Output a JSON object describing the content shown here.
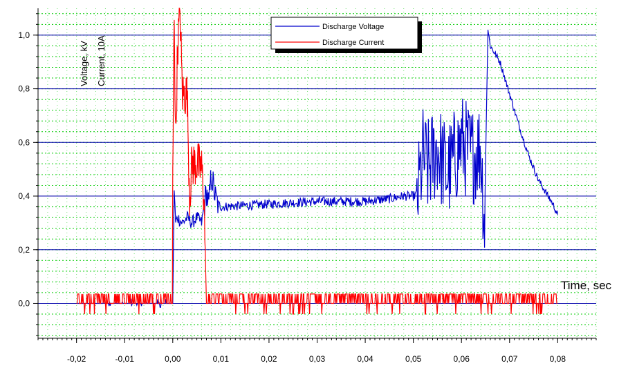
{
  "chart_data": {
    "type": "line",
    "title": "",
    "xlabel": "Time, sec",
    "ylabel_lines": [
      "Voltage, kV",
      "Current, 10A"
    ],
    "xlim": [
      -0.028,
      0.088
    ],
    "ylim": [
      -0.13,
      1.1
    ],
    "x_ticks": [
      -0.02,
      -0.01,
      0.0,
      0.01,
      0.02,
      0.03,
      0.04,
      0.05,
      0.06,
      0.07,
      0.08
    ],
    "x_tick_labels": [
      "-0,02",
      "-0,01",
      "0,00",
      "0,01",
      "0,02",
      "0,03",
      "0,04",
      "0,05",
      "0,06",
      "0,07",
      "0,08"
    ],
    "y_ticks": [
      0.0,
      0.2,
      0.4,
      0.6,
      0.8,
      1.0
    ],
    "y_tick_labels": [
      "0,0",
      "0,2",
      "0,4",
      "0,6",
      "0,8",
      "1,0"
    ],
    "grid": {
      "major_color": "#0000aa",
      "minor_color": "#00cc00",
      "minor_style": "dotted"
    },
    "legend": {
      "position": "top-right",
      "entries": [
        "Discharge Voltage",
        "Discharge Current"
      ]
    },
    "series": [
      {
        "name": "Discharge Voltage",
        "color": "#0000cc",
        "x": [
          -0.02,
          -0.01,
          0.0,
          0.0003,
          0.0006,
          0.001,
          0.002,
          0.003,
          0.004,
          0.005,
          0.006,
          0.0065,
          0.007,
          0.0075,
          0.008,
          0.009,
          0.01,
          0.02,
          0.03,
          0.04,
          0.045,
          0.048,
          0.05,
          0.051,
          0.052,
          0.053,
          0.055,
          0.057,
          0.06,
          0.062,
          0.064,
          0.0648,
          0.0655,
          0.066,
          0.068,
          0.07,
          0.072,
          0.074,
          0.076,
          0.078,
          0.079,
          0.08
        ],
        "y": [
          0.0,
          0.0,
          0.0,
          0.42,
          0.3,
          0.32,
          0.3,
          0.32,
          0.3,
          0.32,
          0.3,
          0.36,
          0.42,
          0.36,
          0.48,
          0.38,
          0.36,
          0.37,
          0.38,
          0.38,
          0.39,
          0.4,
          0.4,
          0.41,
          0.55,
          0.5,
          0.58,
          0.48,
          0.6,
          0.55,
          0.58,
          0.3,
          1.02,
          0.96,
          0.9,
          0.78,
          0.66,
          0.55,
          0.46,
          0.4,
          0.37,
          0.33
        ]
      },
      {
        "name": "Discharge Current",
        "color": "#ff0000",
        "x": [
          -0.02,
          -0.01,
          -0.0005,
          0.0,
          0.0003,
          0.0006,
          0.001,
          0.0015,
          0.002,
          0.003,
          0.0035,
          0.004,
          0.005,
          0.006,
          0.0065,
          0.007,
          0.0075,
          0.02,
          0.04,
          0.06,
          0.08
        ],
        "y": [
          0.0,
          0.0,
          0.0,
          0.45,
          1.1,
          0.6,
          0.95,
          1.1,
          0.78,
          0.78,
          0.4,
          0.52,
          0.52,
          0.5,
          0.4,
          0.0,
          0.0,
          0.0,
          0.0,
          0.0,
          0.0
        ]
      }
    ]
  }
}
